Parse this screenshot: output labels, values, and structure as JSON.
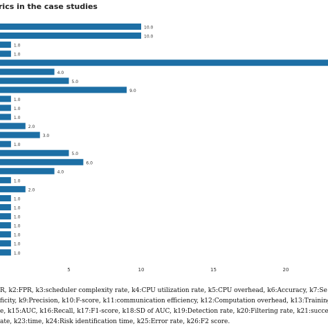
{
  "chart_data": {
    "type": "bar",
    "orientation": "horizontal",
    "title": "rics in the case studies",
    "values": [
      10,
      10,
      1,
      1,
      23,
      4,
      5,
      9,
      1,
      1,
      1,
      2,
      3,
      1,
      5,
      6,
      4,
      1,
      2,
      1,
      1,
      1,
      1,
      1,
      1,
      1
    ],
    "value_labels": [
      "10.0",
      "10.0",
      "1.0",
      "1.0",
      "",
      "4.0",
      "5.0",
      "9.0",
      "1.0",
      "1.0",
      "1.0",
      "2.0",
      "3.0",
      "1.0",
      "5.0",
      "6.0",
      "4.0",
      "1.0",
      "2.0",
      "1.0",
      "1.0",
      "1.0",
      "1.0",
      "1.0",
      "1.0",
      "1.0"
    ],
    "x_ticks": [
      5,
      10,
      15,
      20
    ],
    "xlim": [
      0,
      23
    ],
    "color": "#1d6fa5",
    "grid": false
  },
  "caption": [
    "R, k2:FPR, k3:scheduler complexity rate, k4:CPU utilization rate, k5:CPU overhead, k6:Accuracy, k7:Se",
    "ficity, k9:Precision, k10:F-score, k11:communication efficiency, k12:Computation overhead, k13:Training tim",
    "e, k15:AUC, k16:Recall, k17:F1-score, k18:SD of AUC, k19:Detection rate, k20:Filtering rate, k21:success rate,",
    "ate, k23:time, k24:Risk identification time, k25:Error rate, k26:F2 score."
  ]
}
